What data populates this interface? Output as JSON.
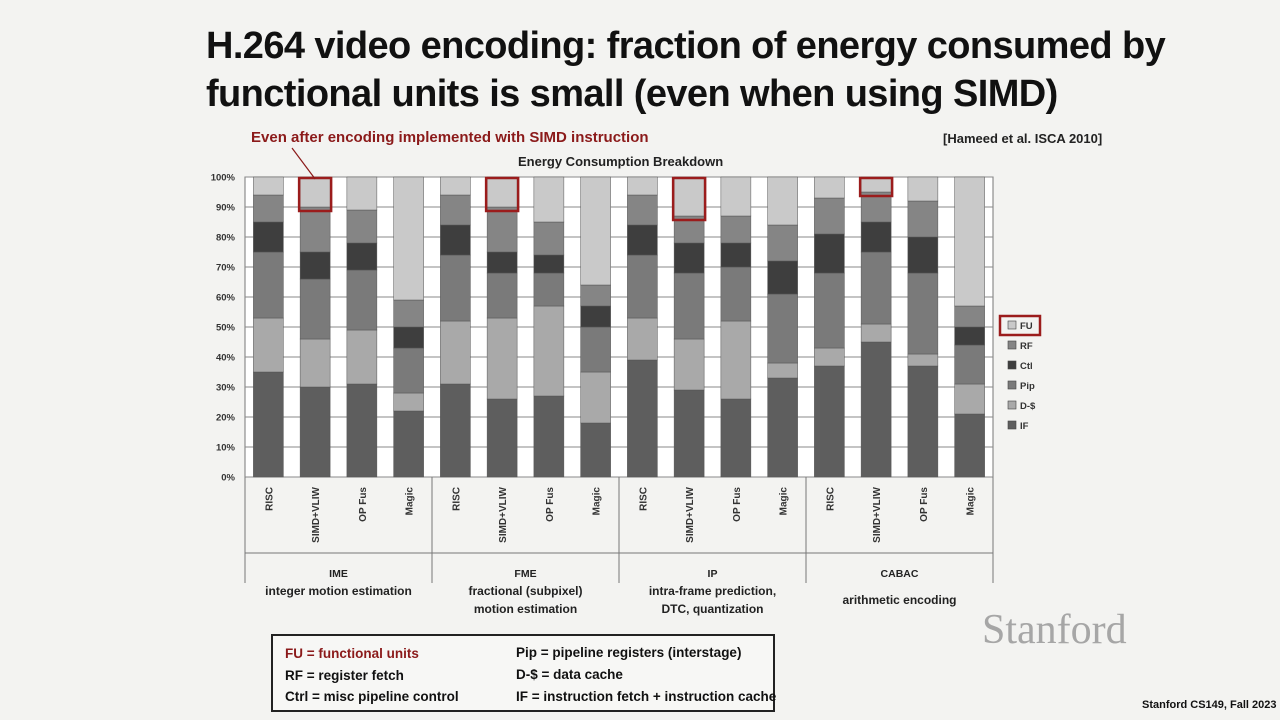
{
  "slide": {
    "title_line1": "H.264 video encoding: fraction of energy consumed by",
    "title_line2": "functional units is small (even when using SIMD)",
    "annotation": "Even after encoding implemented with SIMD instruction",
    "citation": "[Hameed et al. ISCA 2010]",
    "footer": "Stanford CS149, Fall 2023",
    "logo": "Stanford"
  },
  "legend_definitions": {
    "fu": "FU = functional units",
    "rf": "RF = register fetch",
    "ctrl": "Ctrl = misc pipeline control",
    "pip": "Pip = pipeline registers (interstage)",
    "dcache": "D-$ = data cache",
    "if": "IF = instruction fetch + instruction cache"
  },
  "colors": {
    "IF": "#5e5e5e",
    "D-$": "#a9a9a9",
    "Pip": "#7a7a7a",
    "Ctl": "#3e3e3e",
    "RF": "#858585",
    "FU": "#c9c9c9",
    "highlight": "#9b1c1c"
  },
  "chart_data": {
    "type": "bar",
    "stacked": true,
    "title": "Energy Consumption Breakdown",
    "ylim": [
      0,
      100
    ],
    "yticks": [
      "0%",
      "10%",
      "20%",
      "30%",
      "40%",
      "50%",
      "60%",
      "70%",
      "80%",
      "90%",
      "100%"
    ],
    "legend_order": [
      "FU",
      "RF",
      "Ctl",
      "Pip",
      "D-$",
      "IF"
    ],
    "categories": [
      "RISC",
      "SIMD+VLIW",
      "OP Fus",
      "Magic",
      "RISC",
      "SIMD+VLIW",
      "OP Fus",
      "Magic",
      "RISC",
      "SIMD+VLIW",
      "OP Fus",
      "Magic",
      "RISC",
      "SIMD+VLIW",
      "OP Fus",
      "Magic"
    ],
    "groups": [
      {
        "code": "IME",
        "name": "integer motion estimation",
        "name2": ""
      },
      {
        "code": "FME",
        "name": "fractional (subpixel)",
        "name2": "motion estimation"
      },
      {
        "code": "IP",
        "name": "intra-frame prediction,",
        "name2": "DTC, quantization"
      },
      {
        "code": "CABAC",
        "name": "arithmetic encoding",
        "name2": ""
      }
    ],
    "series": [
      {
        "name": "IF",
        "values": [
          35,
          30,
          31,
          22,
          31,
          26,
          27,
          18,
          39,
          29,
          26,
          33,
          37,
          45,
          37,
          21
        ]
      },
      {
        "name": "D-$",
        "values": [
          18,
          16,
          18,
          6,
          21,
          27,
          30,
          17,
          14,
          17,
          26,
          5,
          6,
          6,
          4,
          10
        ]
      },
      {
        "name": "Pip",
        "values": [
          22,
          20,
          20,
          15,
          22,
          15,
          11,
          15,
          21,
          22,
          18,
          23,
          25,
          24,
          27,
          13
        ]
      },
      {
        "name": "Ctl",
        "values": [
          10,
          9,
          9,
          7,
          10,
          7,
          6,
          7,
          10,
          10,
          8,
          11,
          13,
          10,
          12,
          6
        ]
      },
      {
        "name": "RF",
        "values": [
          9,
          15,
          11,
          9,
          10,
          15,
          11,
          7,
          10,
          9,
          9,
          12,
          12,
          10,
          12,
          7
        ]
      },
      {
        "name": "FU",
        "values": [
          6,
          10,
          11,
          41,
          6,
          10,
          15,
          36,
          6,
          13,
          13,
          16,
          7,
          5,
          8,
          43
        ]
      }
    ],
    "highlighted_bars": [
      1,
      5,
      9,
      13
    ],
    "highlighted_legend": "FU"
  }
}
